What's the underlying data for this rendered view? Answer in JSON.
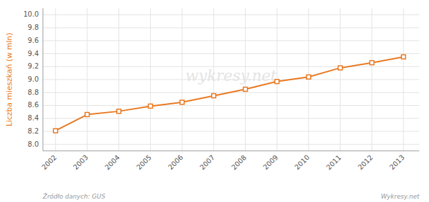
{
  "chart_data": {
    "type": "line",
    "ylabel": "Liczba mieszkań (w mln)",
    "annotations": [
      "wykresy.net",
      "Źródło danych:  GUS",
      "Wykresy.net"
    ],
    "x": [
      2002,
      2003,
      2004,
      2005,
      2006,
      2007,
      2008,
      2009,
      2010,
      2011,
      2012,
      2013
    ],
    "values": [
      8.21,
      8.46,
      8.51,
      8.59,
      8.65,
      8.75,
      8.85,
      8.97,
      9.04,
      9.18,
      9.26,
      9.35
    ],
    "color": "#e87820",
    "marker": "square",
    "xlim": [
      2001.6,
      2013.5
    ],
    "xticks": [
      2002,
      2003,
      2004,
      2005,
      2006,
      2007,
      2008,
      2009,
      2010,
      2011,
      2012,
      2013
    ],
    "ylim": [
      7.9,
      10.1
    ],
    "yticks": [
      {
        "value": 8.0,
        "label": "8.0"
      },
      8.2,
      8.4,
      8.6,
      8.8,
      {
        "value": 9.0,
        "label": "9.0"
      },
      9.2,
      9.4,
      9.6,
      9.8,
      {
        "value": 10.0,
        "label": "10.0"
      }
    ],
    "grid": true
  }
}
